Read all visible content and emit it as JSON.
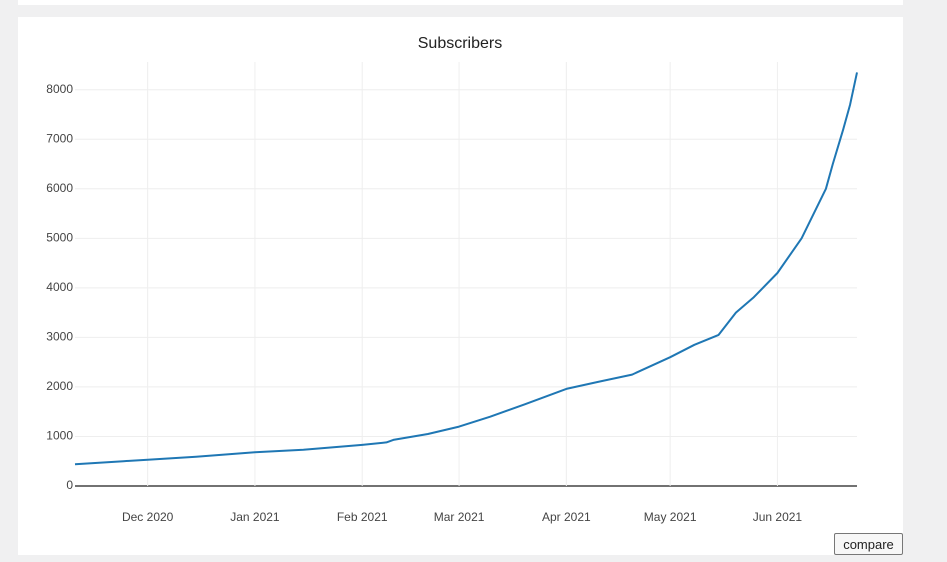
{
  "chart_data": {
    "type": "line",
    "title": "Subscribers",
    "x": [
      "2020-11-10",
      "2020-11-24",
      "2020-12-01",
      "2020-12-15",
      "2021-01-01",
      "2021-01-15",
      "2021-02-01",
      "2021-02-08",
      "2021-02-10",
      "2021-02-20",
      "2021-03-01",
      "2021-03-10",
      "2021-03-20",
      "2021-04-01",
      "2021-04-10",
      "2021-04-20",
      "2021-05-01",
      "2021-05-08",
      "2021-05-15",
      "2021-05-20",
      "2021-05-25",
      "2021-06-01",
      "2021-06-08",
      "2021-06-15",
      "2021-06-17",
      "2021-06-20",
      "2021-06-22",
      "2021-06-24"
    ],
    "values": [
      440,
      500,
      530,
      590,
      680,
      730,
      830,
      880,
      930,
      1050,
      1200,
      1400,
      1650,
      1960,
      2100,
      2250,
      2600,
      2850,
      3050,
      3500,
      3800,
      4300,
      5000,
      6000,
      6500,
      7200,
      7700,
      8350
    ],
    "color": "#1f77b4",
    "xlim": [
      "2020-11-10",
      "2021-06-24"
    ],
    "xticks": [
      {
        "value": "2020-12-01",
        "label": "Dec 2020"
      },
      {
        "value": "2021-01-01",
        "label": "Jan 2021"
      },
      {
        "value": "2021-02-01",
        "label": "Feb 2021"
      },
      {
        "value": "2021-03-01",
        "label": "Mar 2021"
      },
      {
        "value": "2021-04-01",
        "label": "Apr 2021"
      },
      {
        "value": "2021-05-01",
        "label": "May 2021"
      },
      {
        "value": "2021-06-01",
        "label": "Jun 2021"
      }
    ],
    "ylim": [
      0,
      8560
    ],
    "yticks": [
      0,
      1000,
      2000,
      3000,
      4000,
      5000,
      6000,
      7000,
      8000
    ],
    "grid": true
  },
  "compare_button": "compare"
}
